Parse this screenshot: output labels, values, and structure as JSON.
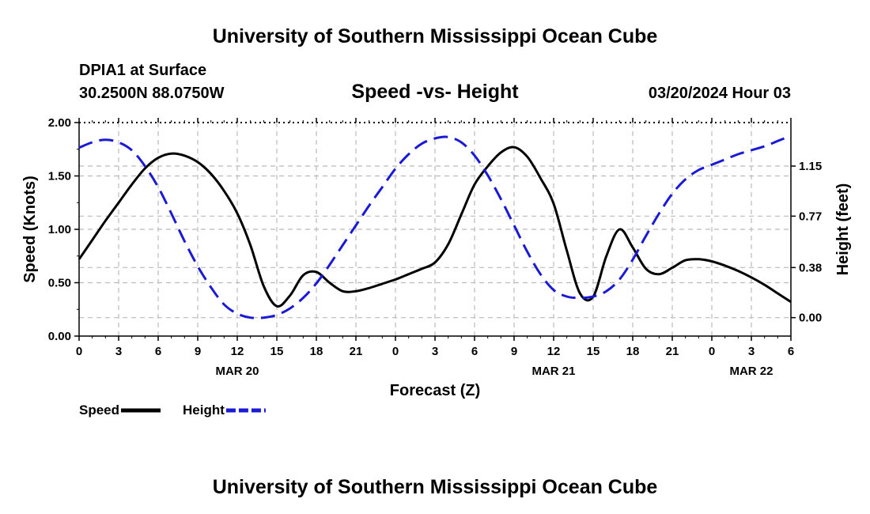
{
  "page": {
    "title_top": "University of Southern Mississippi Ocean Cube",
    "title_bottom": "University of Southern Mississippi Ocean Cube",
    "station": "DPIA1 at Surface",
    "coords": "30.2500N  88.0750W",
    "date_hour": "03/20/2024 Hour 03"
  },
  "colors": {
    "speed": "#000000",
    "height": "#1a1ad6",
    "grid": "#bbbbbb"
  },
  "chart_data": {
    "type": "line",
    "title": "Speed -vs- Height",
    "xlabel": "Forecast (Z)",
    "ylabel_left": "Speed (Knots)",
    "ylabel_right": "Height (feet)",
    "xlim": [
      0,
      54
    ],
    "ylim_left": [
      0,
      2.0
    ],
    "ylim_right": [
      -0.14,
      1.48
    ],
    "x_tick_values": [
      0,
      3,
      6,
      9,
      12,
      15,
      18,
      21,
      24,
      27,
      30,
      33,
      36,
      39,
      42,
      45,
      48,
      51,
      54
    ],
    "x_tick_labels": [
      "0",
      "3",
      "6",
      "9",
      "12",
      "15",
      "18",
      "21",
      "0",
      "3",
      "6",
      "9",
      "12",
      "15",
      "18",
      "21",
      "0",
      "3",
      "6"
    ],
    "date_labels": [
      {
        "x": 12,
        "label": "MAR 20"
      },
      {
        "x": 36,
        "label": "MAR 21"
      },
      {
        "x": 51,
        "label": "MAR 22"
      }
    ],
    "y_left_ticks": [
      {
        "v": 0,
        "label": "0.00"
      },
      {
        "v": 0.5,
        "label": "0.50"
      },
      {
        "v": 1.0,
        "label": "1.00"
      },
      {
        "v": 1.5,
        "label": "1.50"
      },
      {
        "v": 2.0,
        "label": "2.00"
      }
    ],
    "y_right_ticks": [
      {
        "v": 0.0,
        "label": "0.00"
      },
      {
        "v": 0.38,
        "label": "0.38"
      },
      {
        "v": 0.77,
        "label": "0.77"
      },
      {
        "v": 1.15,
        "label": "1.15"
      }
    ],
    "series": [
      {
        "name": "Speed",
        "axis": "left",
        "style": "solid",
        "x": [
          0,
          1,
          2,
          3,
          4,
          5,
          6,
          7,
          8,
          9,
          10,
          11,
          12,
          13,
          14,
          15,
          16,
          17,
          18,
          19,
          20,
          21,
          22,
          23,
          24,
          25,
          26,
          27,
          28,
          29,
          30,
          31,
          32,
          33,
          34,
          35,
          36,
          37,
          38,
          39,
          40,
          41,
          42,
          43,
          44,
          45,
          46,
          47,
          48,
          49,
          50,
          51,
          52,
          53,
          54
        ],
        "values": [
          0.72,
          0.9,
          1.08,
          1.25,
          1.42,
          1.57,
          1.67,
          1.71,
          1.69,
          1.63,
          1.52,
          1.36,
          1.15,
          0.85,
          0.47,
          0.28,
          0.38,
          0.57,
          0.6,
          0.5,
          0.42,
          0.42,
          0.45,
          0.49,
          0.53,
          0.58,
          0.63,
          0.69,
          0.86,
          1.14,
          1.42,
          1.59,
          1.72,
          1.77,
          1.68,
          1.48,
          1.24,
          0.8,
          0.4,
          0.37,
          0.75,
          1.0,
          0.83,
          0.63,
          0.58,
          0.64,
          0.71,
          0.72,
          0.7,
          0.66,
          0.61,
          0.55,
          0.48,
          0.4,
          0.32
        ]
      },
      {
        "name": "Height",
        "axis": "right",
        "style": "dashed",
        "x": [
          0,
          1,
          2,
          3,
          4,
          5,
          6,
          7,
          8,
          9,
          10,
          11,
          12,
          13,
          14,
          15,
          16,
          17,
          18,
          19,
          20,
          21,
          22,
          23,
          24,
          25,
          26,
          27,
          28,
          29,
          30,
          31,
          32,
          33,
          34,
          35,
          36,
          37,
          38,
          39,
          40,
          41,
          42,
          43,
          44,
          45,
          46,
          47,
          48,
          49,
          50,
          51,
          52,
          53,
          54
        ],
        "values": [
          1.29,
          1.33,
          1.35,
          1.33,
          1.27,
          1.15,
          0.99,
          0.79,
          0.58,
          0.39,
          0.23,
          0.1,
          0.03,
          0.0,
          0.0,
          0.02,
          0.07,
          0.15,
          0.26,
          0.4,
          0.55,
          0.7,
          0.85,
          0.99,
          1.13,
          1.24,
          1.32,
          1.36,
          1.37,
          1.33,
          1.23,
          1.08,
          0.9,
          0.7,
          0.5,
          0.33,
          0.21,
          0.16,
          0.15,
          0.16,
          0.2,
          0.29,
          0.44,
          0.62,
          0.79,
          0.94,
          1.05,
          1.12,
          1.16,
          1.2,
          1.24,
          1.27,
          1.3,
          1.34,
          1.38
        ]
      }
    ],
    "legend": [
      {
        "name": "Speed",
        "style": "solid"
      },
      {
        "name": "Height",
        "style": "dashed"
      }
    ],
    "legend_position": "bottom-left",
    "grid": true
  }
}
